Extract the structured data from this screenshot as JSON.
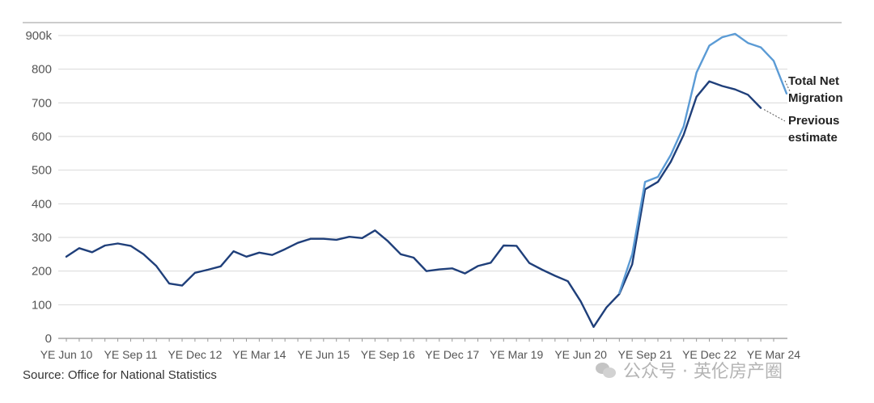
{
  "chart_data": {
    "type": "line",
    "ylim": [
      0,
      900
    ],
    "y_ticks": [
      {
        "value": 0,
        "label": "0"
      },
      {
        "value": 100,
        "label": "100"
      },
      {
        "value": 200,
        "label": "200"
      },
      {
        "value": 300,
        "label": "300"
      },
      {
        "value": 400,
        "label": "400"
      },
      {
        "value": 500,
        "label": "500"
      },
      {
        "value": 600,
        "label": "600"
      },
      {
        "value": 700,
        "label": "700"
      },
      {
        "value": 800,
        "label": "800"
      },
      {
        "value": 900,
        "label": "900k"
      }
    ],
    "x_ticks": [
      {
        "index": 0,
        "label": "YE Jun 10"
      },
      {
        "index": 5,
        "label": "YE Sep 11"
      },
      {
        "index": 10,
        "label": "YE Dec 12"
      },
      {
        "index": 15,
        "label": "YE Mar 14"
      },
      {
        "index": 20,
        "label": "YE Jun 15"
      },
      {
        "index": 25,
        "label": "YE Sep 16"
      },
      {
        "index": 30,
        "label": "YE Dec 17"
      },
      {
        "index": 35,
        "label": "YE Mar 19"
      },
      {
        "index": 40,
        "label": "YE Jun 20"
      },
      {
        "index": 45,
        "label": "YE Sep 21"
      },
      {
        "index": 50,
        "label": "YE Dec 22"
      },
      {
        "index": 55,
        "label": "YE Mar 24"
      }
    ],
    "grid": "horizontal",
    "series": [
      {
        "name": "Total Net Migration",
        "color": "#5b9bd5",
        "start_index": 43,
        "values": [
          135,
          250,
          465,
          480,
          545,
          630,
          790,
          870,
          895,
          905,
          878,
          865,
          825,
          728
        ]
      },
      {
        "name": "Previous estimate",
        "color": "#1f3f7a",
        "start_index": 0,
        "values": [
          243,
          268,
          256,
          276,
          282,
          275,
          250,
          215,
          163,
          157,
          195,
          204,
          214,
          259,
          243,
          255,
          248,
          265,
          284,
          296,
          296,
          293,
          302,
          298,
          321,
          289,
          250,
          240,
          200,
          205,
          208,
          193,
          215,
          225,
          276,
          275,
          224,
          204,
          186,
          170,
          110,
          34,
          92,
          132,
          220,
          443,
          465,
          525,
          605,
          718,
          764,
          750,
          740,
          724,
          685
        ]
      }
    ]
  },
  "labels": {
    "total_line1": "Total Net",
    "total_line2": "Migration",
    "previous_line1": "Previous",
    "previous_line2": "estimate"
  },
  "source": "Source: Office for National Statistics",
  "watermark": "公众号 · 英伦房产圈"
}
